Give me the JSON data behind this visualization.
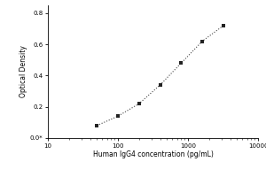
{
  "title": "",
  "xlabel": "Human IgG4 concentration (pg/mL)",
  "ylabel": "Optical Density",
  "x_data": [
    50,
    100,
    200,
    400,
    800,
    1600,
    3200
  ],
  "y_data": [
    0.08,
    0.14,
    0.22,
    0.34,
    0.48,
    0.62,
    0.72
  ],
  "xlim": [
    10,
    10000
  ],
  "ylim": [
    0.0,
    0.85
  ],
  "yticks": [
    0.0,
    0.2,
    0.4,
    0.6,
    0.8
  ],
  "ytick_labels": [
    "0.0*",
    "0.2",
    "0.4",
    "0.6",
    "0.8"
  ],
  "xtick_labels": [
    "10",
    "100",
    "1000",
    "10000"
  ],
  "marker_color": "#222222",
  "line_color": "#444444",
  "line_style": "dotted",
  "marker_style": "s",
  "marker_size": 3.5,
  "background_color": "#ffffff",
  "fontsize_label": 5.5,
  "fontsize_tick": 5.0
}
